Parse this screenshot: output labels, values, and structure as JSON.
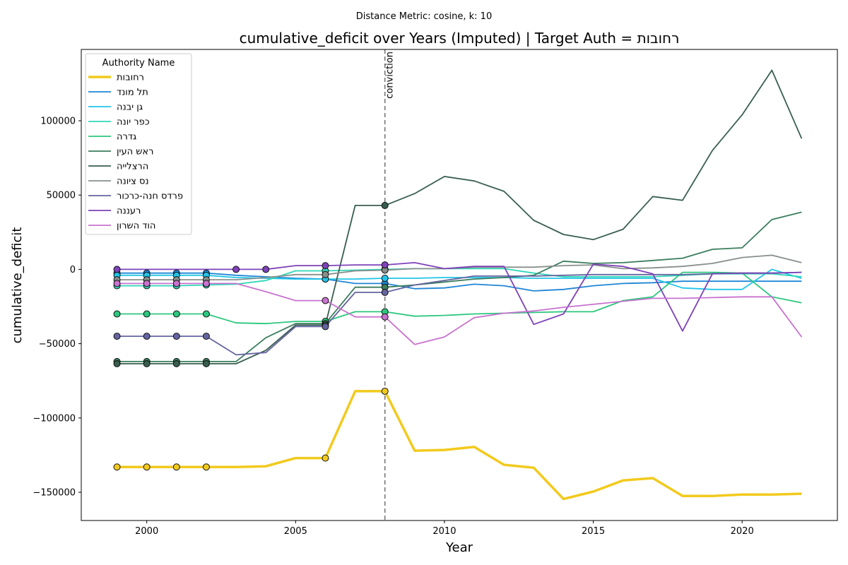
{
  "chart_data": {
    "type": "line",
    "suptitle": "Distance Metric: cosine, k: 10",
    "title": "cumulative_deficit over Years (Imputed) | Target Auth = רחובות",
    "xlabel": "Year",
    "ylabel": "cumulative_deficit",
    "xlim": [
      1997.8,
      2023.2
    ],
    "ylim": [
      -169000,
      148000
    ],
    "xticks": [
      2000,
      2005,
      2010,
      2015,
      2020
    ],
    "yticks": [
      -150000,
      -100000,
      -50000,
      0,
      50000,
      100000
    ],
    "xtick_labels": [
      "2000",
      "2005",
      "2010",
      "2015",
      "2020"
    ],
    "ytick_labels": [
      "−150000",
      "−100000",
      "−50000",
      "0",
      "50000",
      "100000"
    ],
    "legend_title": "Authority Name",
    "legend_position": "upper-left",
    "grid": false,
    "vline": {
      "x": 2008,
      "label": "conviction",
      "color": "#777777"
    },
    "x": [
      1999,
      2000,
      2001,
      2002,
      2003,
      2004,
      2005,
      2006,
      2007,
      2008,
      2009,
      2010,
      2011,
      2012,
      2013,
      2014,
      2015,
      2016,
      2017,
      2018,
      2019,
      2020,
      2021,
      2022
    ],
    "series": [
      {
        "name": "רחובות",
        "color": "#f2ca1d",
        "target": true,
        "marker_years": [
          1999,
          2000,
          2001,
          2002,
          2006,
          2008
        ],
        "values": [
          -133000,
          -133000,
          -133000,
          -133000,
          -133000,
          -132500,
          -127000,
          -127000,
          -82000,
          -82000,
          -122000,
          -121500,
          -119500,
          -131500,
          -133500,
          -154500,
          -149500,
          -142000,
          -140500,
          -152500,
          -152500,
          -151500,
          -151500,
          -151000
        ]
      },
      {
        "name": "תל מונד",
        "color": "#1f86d6",
        "marker_years": [
          1999,
          2000,
          2001,
          2002,
          2006,
          2008
        ],
        "values": [
          -2500,
          -2500,
          -2500,
          -2500,
          -4000,
          -5000,
          -6000,
          -6500,
          -9500,
          -9500,
          -13000,
          -12500,
          -10000,
          -11000,
          -14500,
          -13500,
          -11000,
          -9500,
          -9000,
          -8000,
          -8000,
          -8000,
          -8000,
          -8000
        ]
      },
      {
        "name": "גן יבנה",
        "color": "#22c5e8",
        "marker_years": [
          1999,
          2000,
          2001,
          2002,
          2006,
          2008
        ],
        "values": [
          -4000,
          -4000,
          -4000,
          -4000,
          -5500,
          -6000,
          -6500,
          -6500,
          -6500,
          -6000,
          -6000,
          -5500,
          -5500,
          -5500,
          -6000,
          -6000,
          -6000,
          -6000,
          -6000,
          -12500,
          -13500,
          -13500,
          0,
          -6000
        ]
      },
      {
        "name": "כפר יונה",
        "color": "#2fd7b8",
        "marker_years": [
          1999,
          2000,
          2001,
          2002,
          2006,
          2008
        ],
        "values": [
          -11000,
          -11000,
          -11000,
          -10500,
          -10000,
          -7500,
          -1000,
          -1000,
          -500,
          0,
          500,
          500,
          500,
          500,
          -2500,
          -5000,
          -5000,
          -5000,
          -5000,
          -4000,
          -3000,
          -3000,
          -3000,
          -5000
        ]
      },
      {
        "name": "גדרה",
        "color": "#2cc77e",
        "marker_years": [
          1999,
          2000,
          2001,
          2002,
          2006,
          2008
        ],
        "values": [
          -30000,
          -30000,
          -30000,
          -30000,
          -36000,
          -36500,
          -35000,
          -35000,
          -28500,
          -28500,
          -31500,
          -31000,
          -30000,
          -29500,
          -29000,
          -28500,
          -28500,
          -21000,
          -18500,
          -2000,
          -2000,
          -2500,
          -18500,
          -22500
        ]
      },
      {
        "name": "ראש העין",
        "color": "#3b7d5e",
        "marker_years": [
          1999,
          2000,
          2001,
          2002,
          2006,
          2008
        ],
        "values": [
          -62000,
          -62000,
          -62000,
          -62000,
          -62000,
          -46000,
          -36500,
          -36500,
          -12000,
          -12000,
          -10500,
          -8500,
          -6500,
          -5500,
          -4000,
          5500,
          4000,
          4500,
          6000,
          7500,
          13500,
          14500,
          33500,
          38500
        ]
      },
      {
        "name": "הרצלייה",
        "color": "#385e4f",
        "marker_years": [
          1999,
          2000,
          2001,
          2002,
          2006,
          2008
        ],
        "values": [
          -63500,
          -63500,
          -63500,
          -63500,
          -63500,
          -54500,
          -37500,
          -37500,
          43000,
          43000,
          51000,
          62500,
          59500,
          52500,
          33000,
          23500,
          20000,
          27000,
          49000,
          46500,
          80000,
          104000,
          134000,
          88000
        ]
      },
      {
        "name": "נס ציונה",
        "color": "#888f8b",
        "marker_years": [
          1999,
          2000,
          2001,
          2002,
          2006,
          2008
        ],
        "values": [
          -7000,
          -7000,
          -7000,
          -7000,
          -7000,
          -5500,
          -3500,
          -3500,
          -1000,
          -500,
          500,
          500,
          1500,
          1500,
          1500,
          2500,
          3000,
          500,
          1000,
          2000,
          4000,
          8000,
          9500,
          4500
        ]
      },
      {
        "name": "פרדס חנה-כרכור",
        "color": "#6464a0",
        "marker_years": [
          1999,
          2000,
          2001,
          2002,
          2006,
          2008
        ],
        "values": [
          -45000,
          -45000,
          -45000,
          -45000,
          -57500,
          -56000,
          -38500,
          -38500,
          -15500,
          -15500,
          -10500,
          -7500,
          -4500,
          -4500,
          -4500,
          -4000,
          -3500,
          -3500,
          -3500,
          -3500,
          -3000,
          -2500,
          -2500,
          -2000
        ]
      },
      {
        "name": "רעננה",
        "color": "#7e42b9",
        "marker_years": [
          1999,
          2003,
          2004,
          2006,
          2008
        ],
        "values": [
          0,
          0,
          0,
          0,
          0,
          0,
          2500,
          2500,
          3000,
          3000,
          4500,
          500,
          2000,
          2000,
          -37000,
          -30000,
          3500,
          2000,
          -3000,
          -41500,
          -3000,
          -2500,
          -2500,
          -2000
        ]
      },
      {
        "name": "הוד השרון",
        "color": "#c872cf",
        "marker_years": [
          1999,
          2000,
          2001,
          2002,
          2006,
          2008
        ],
        "values": [
          -9500,
          -9500,
          -9500,
          -9500,
          -9500,
          -15000,
          -21000,
          -21000,
          -32000,
          -32000,
          -50500,
          -45500,
          -32500,
          -29500,
          -28000,
          -25500,
          -23500,
          -21500,
          -19500,
          -19500,
          -19000,
          -18500,
          -18500,
          -45500
        ]
      }
    ]
  }
}
